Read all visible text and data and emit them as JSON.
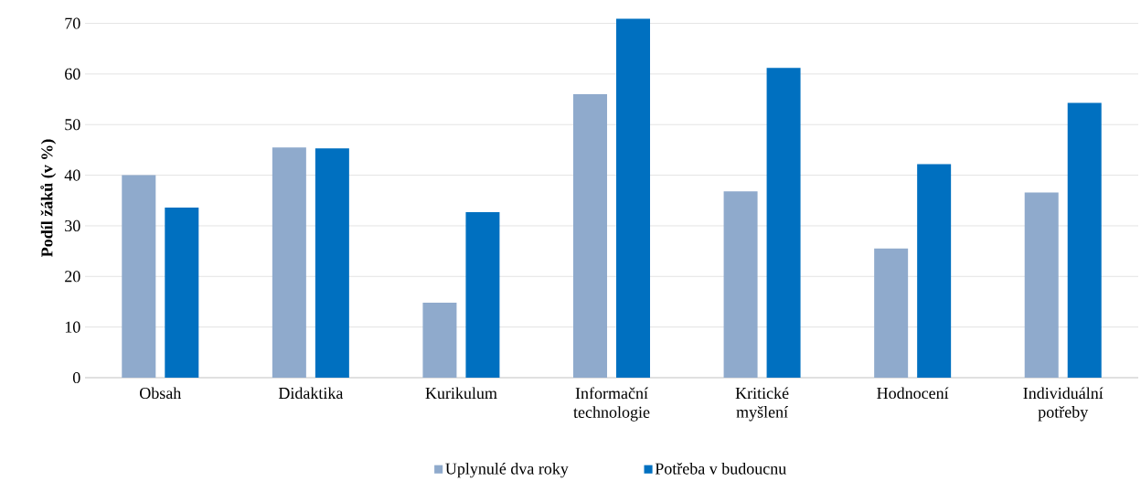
{
  "chart_data": {
    "type": "bar",
    "ylabel": "Podíl žáků (v %)",
    "categories": [
      "Obsah",
      "Didaktika",
      "Kurikulum",
      "Informační technologie",
      "Kritické myšlení",
      "Hodnocení",
      "Individuální potřeby"
    ],
    "series": [
      {
        "name": "Uplynulé dva roky",
        "color": "#8faacc",
        "values": [
          40,
          45.5,
          14.8,
          56,
          36.8,
          25.5,
          36.6
        ]
      },
      {
        "name": "Potřeba v budoucnu",
        "color": "#0070c0",
        "values": [
          33.6,
          45.3,
          32.7,
          70.9,
          61.2,
          42.2,
          54.3
        ]
      }
    ],
    "ylim": [
      0,
      71
    ],
    "yticks": [
      0,
      10,
      20,
      30,
      40,
      50,
      60,
      70
    ],
    "grid": "y",
    "legend": "bottom"
  }
}
